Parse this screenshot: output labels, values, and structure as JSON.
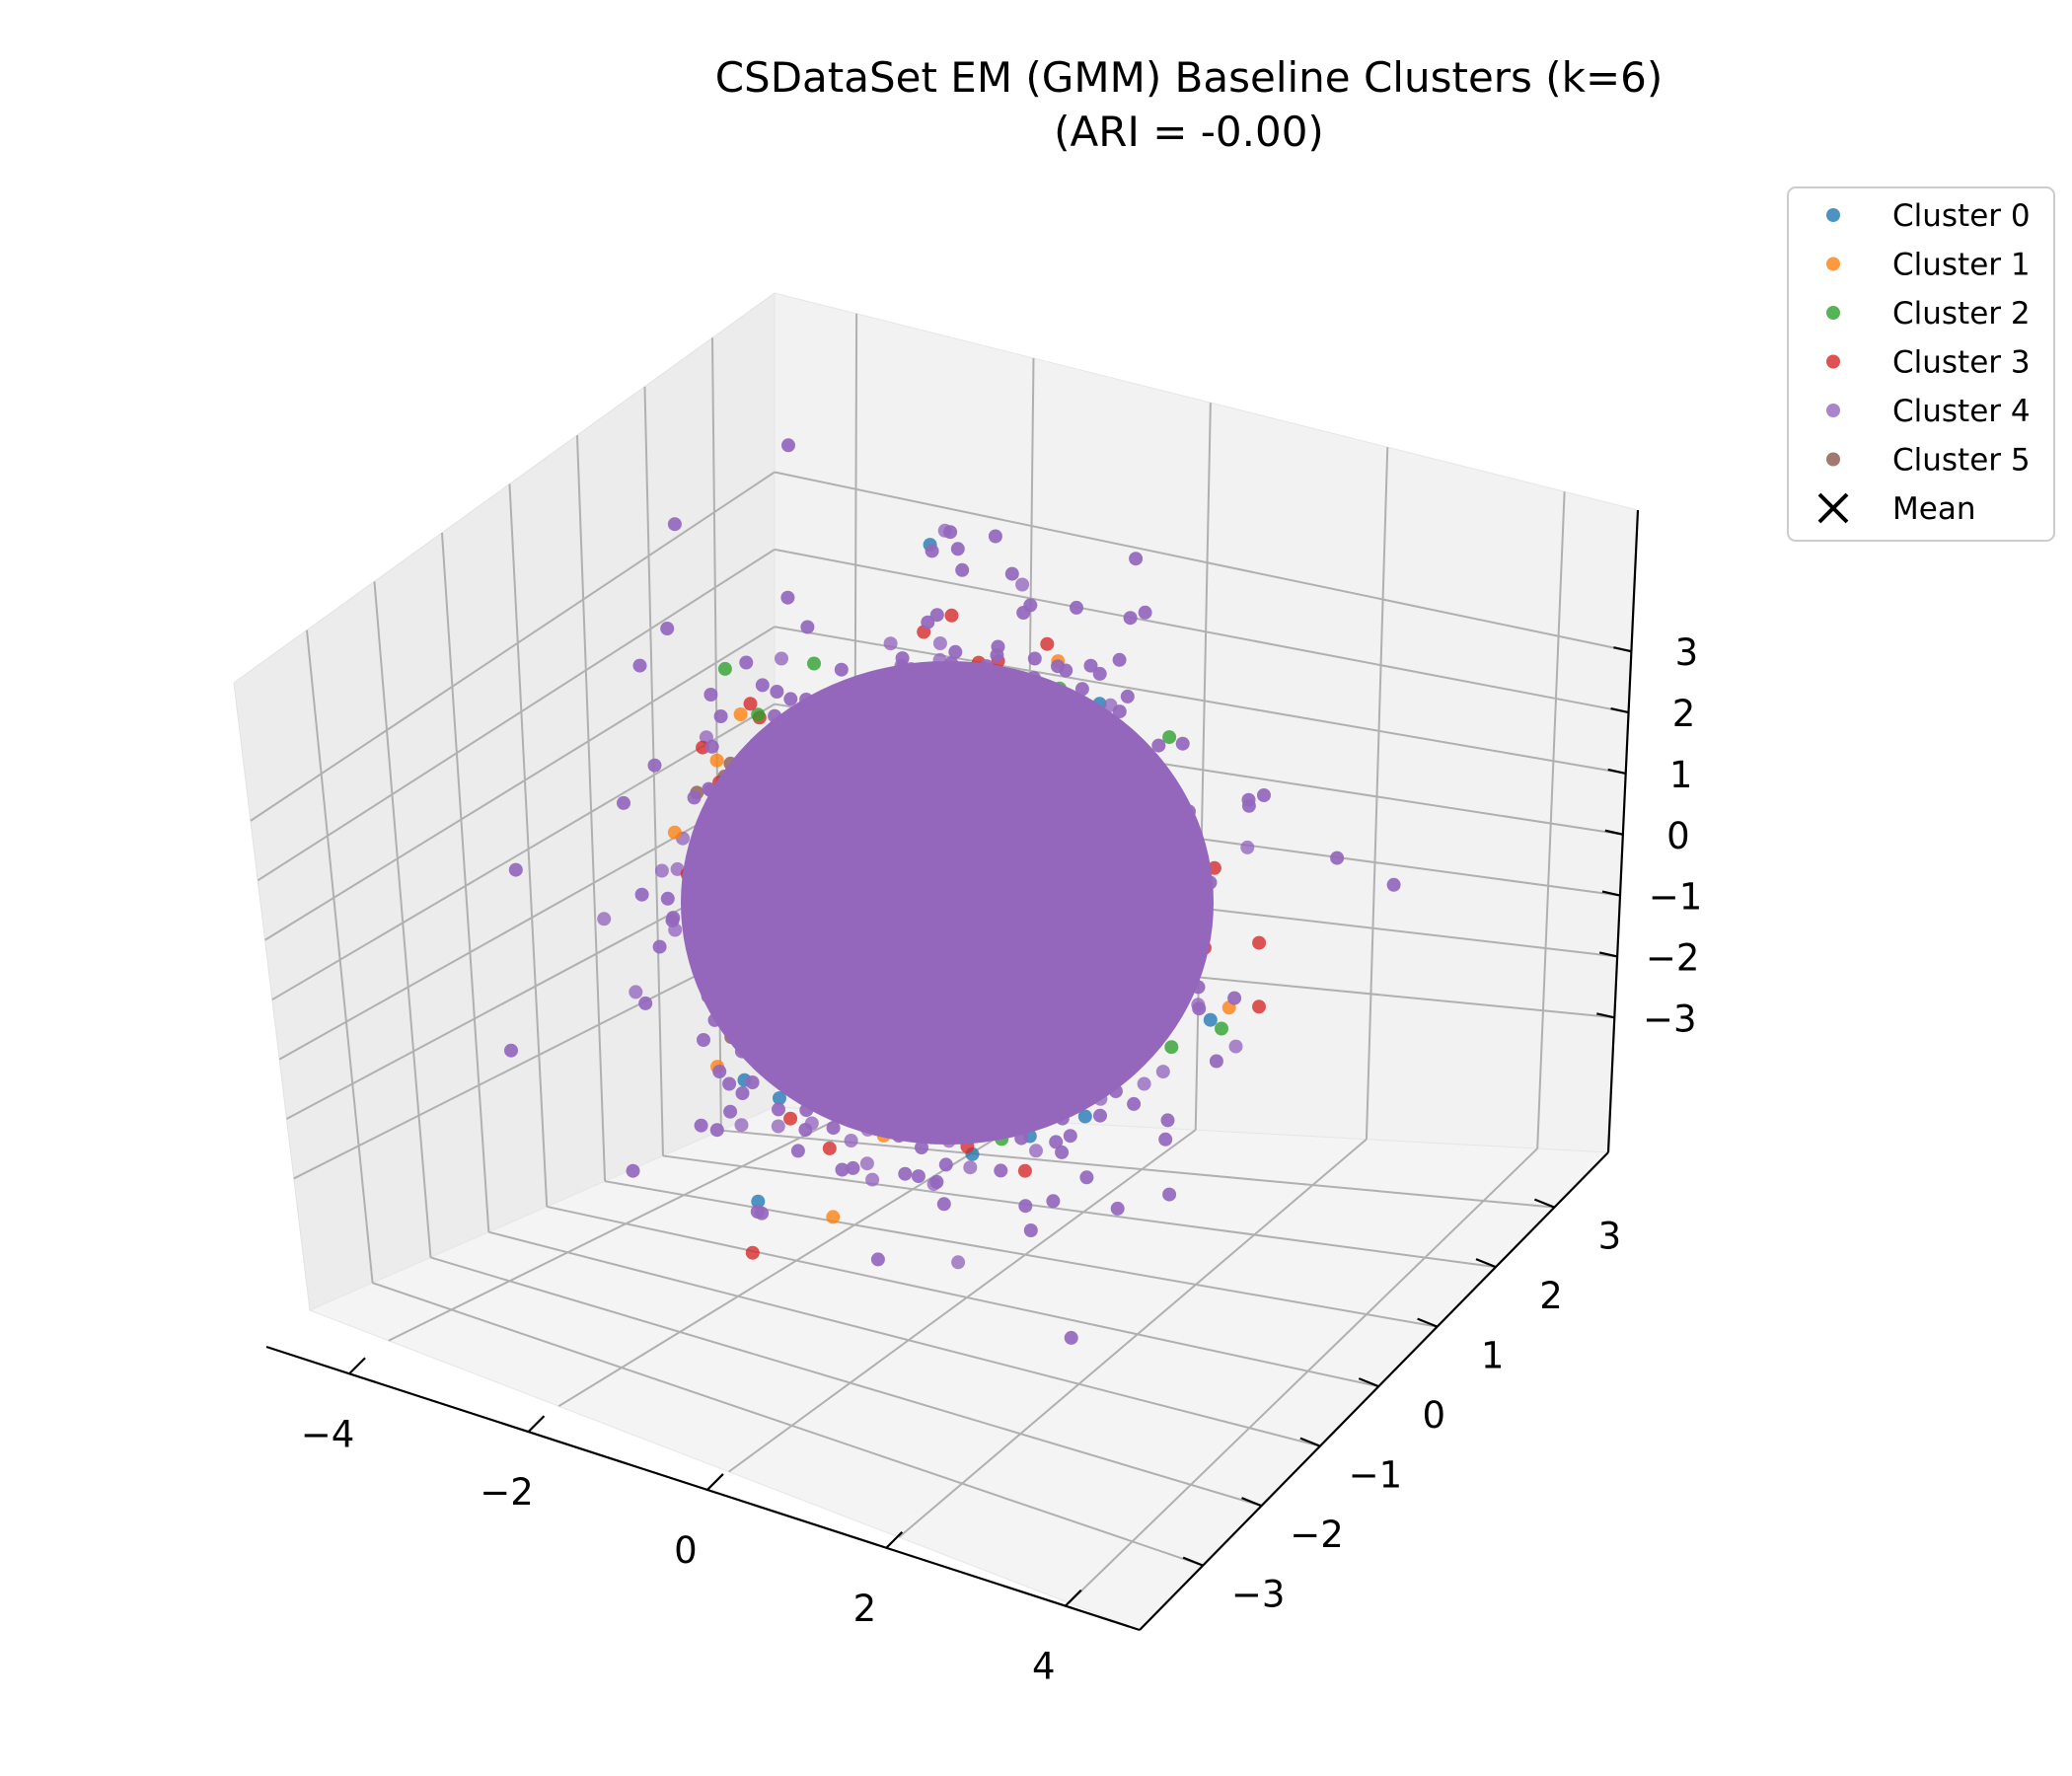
{
  "chart_data": {
    "type": "scatter",
    "title": "CSDataSet EM (GMM) Baseline Clusters (k=6)",
    "subtitle": "(ARI = -0.00)",
    "xlabel": "",
    "ylabel": "",
    "zlabel": "",
    "x_ticks": [
      "−4",
      "−2",
      "0",
      "2",
      "4"
    ],
    "y_ticks": [
      "−3",
      "−2",
      "−1",
      "0",
      "1",
      "2",
      "3"
    ],
    "z_ticks": [
      "−3",
      "−2",
      "−1",
      "0",
      "1",
      "2",
      "3"
    ],
    "xlim": [
      -5.2,
      5.2
    ],
    "ylim": [
      -3.8,
      3.8
    ],
    "zlim": [
      -3.8,
      3.8
    ],
    "grid": true,
    "legend_position": "outside-top-right",
    "distribution": "isotropic standard normal cloud centered at (0, 0, 0)",
    "series": [
      {
        "name": "Cluster 0",
        "color": "#1f77b4"
      },
      {
        "name": "Cluster 1",
        "color": "#ff7f0e"
      },
      {
        "name": "Cluster 2",
        "color": "#2ca02c"
      },
      {
        "name": "Cluster 3",
        "color": "#d62728"
      },
      {
        "name": "Cluster 4",
        "color": "#9467bd"
      },
      {
        "name": "Cluster 5",
        "color": "#8c564b"
      }
    ],
    "mean_marker": {
      "name": "Mean",
      "symbol": "x",
      "color": "#000000"
    }
  }
}
